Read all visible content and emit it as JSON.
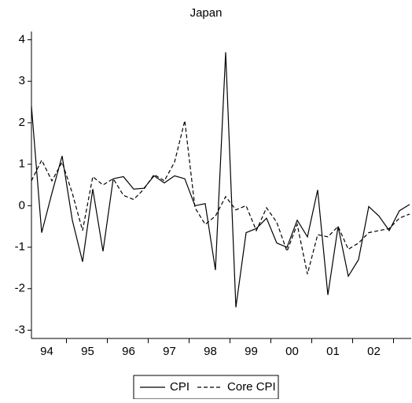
{
  "chart_data": {
    "type": "line",
    "title": "Japan",
    "categories": [
      null,
      "94",
      null,
      null,
      null,
      "95",
      null,
      null,
      null,
      "96",
      null,
      null,
      null,
      "97",
      null,
      null,
      null,
      "98",
      null,
      null,
      null,
      "99",
      null,
      null,
      null,
      "00",
      null,
      null,
      null,
      "01",
      null,
      null,
      null,
      "02",
      null,
      null,
      null,
      null
    ],
    "series": [
      {
        "name": "CPI",
        "color": "#000000",
        "dash": false,
        "values": [
          2.4,
          -0.65,
          0.3,
          1.2,
          -0.35,
          -1.35,
          0.4,
          -1.1,
          0.65,
          0.7,
          0.4,
          0.42,
          0.72,
          0.55,
          0.72,
          0.65,
          0.0,
          0.05,
          -1.55,
          3.7,
          -2.45,
          -0.65,
          -0.55,
          -0.3,
          -0.9,
          -1.0,
          -0.35,
          -0.75,
          0.38,
          -2.15,
          -0.5,
          -1.7,
          -1.3,
          -0.02,
          -0.25,
          -0.6,
          -0.12,
          0.03
        ]
      },
      {
        "name": "Core CPI",
        "color": "#000000",
        "dash": true,
        "values": [
          0.6,
          1.1,
          0.6,
          1.05,
          0.3,
          -0.6,
          0.7,
          0.5,
          0.65,
          0.25,
          0.15,
          0.4,
          0.75,
          0.6,
          1.05,
          2.05,
          -0.05,
          -0.45,
          -0.25,
          0.22,
          -0.1,
          0.0,
          -0.6,
          -0.05,
          -0.4,
          -1.1,
          -0.45,
          -1.65,
          -0.7,
          -0.75,
          -0.5,
          -1.05,
          -0.9,
          -0.65,
          -0.6,
          -0.55,
          -0.3,
          -0.2
        ]
      }
    ],
    "ylim": [
      -3.2,
      4.2
    ],
    "yticks": [
      -3,
      -2,
      -1,
      0,
      1,
      2,
      3,
      4
    ],
    "legend": "bottom"
  }
}
